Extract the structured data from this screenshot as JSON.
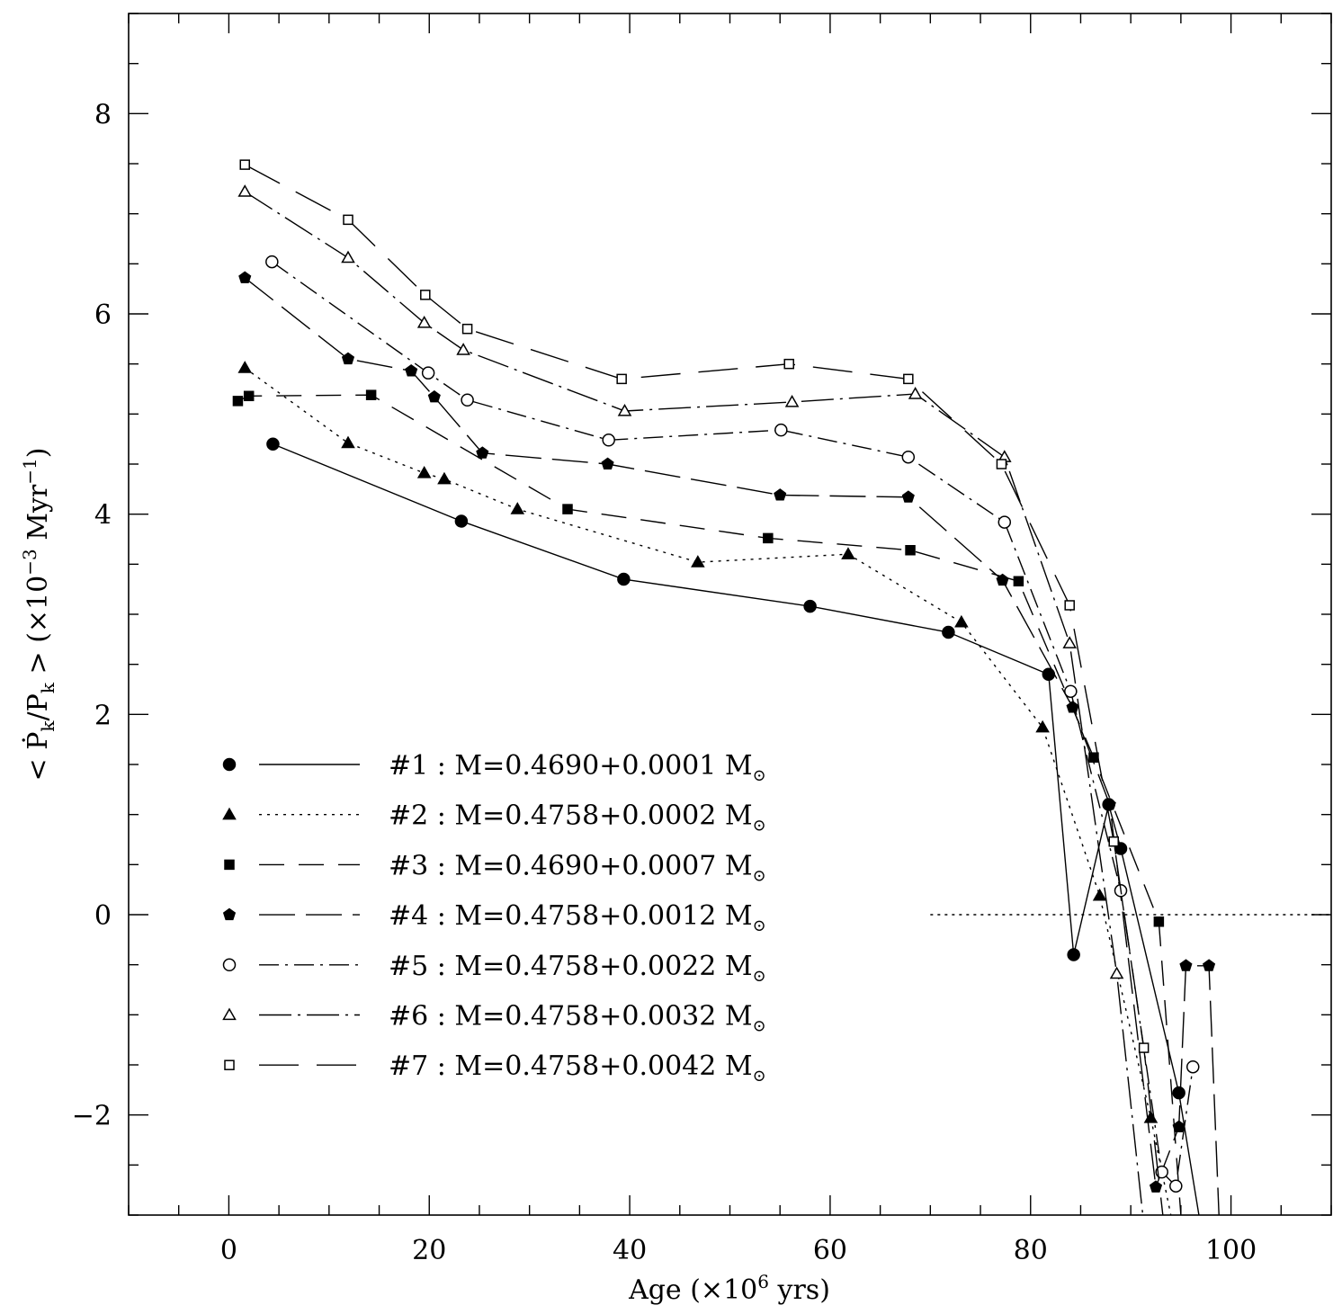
{
  "chart_data": {
    "type": "line",
    "xlabel": "Age (×10⁶ yrs)",
    "ylabel": "< Ṗk/Pk > (×10⁻³ Myr⁻¹)",
    "ylabel_parts": {
      "open": "<",
      "pdot": "Ṗ",
      "k1": "k",
      "slash": "/P",
      "k2": "k",
      "close": ">",
      "unit_open": "(×10",
      "exp": "−3",
      "unit_mid": " Myr",
      "unit_exp": "−1",
      "unit_close": ")"
    },
    "xlabel_parts": {
      "pre": "Age (×10",
      "exp": "6",
      "post": " yrs)"
    },
    "xlim": [
      -10,
      110
    ],
    "ylim": [
      -3,
      9
    ],
    "xticks": [
      0,
      20,
      40,
      60,
      80,
      100
    ],
    "xtick_labels": [
      "0",
      "20",
      "40",
      "60",
      "80",
      "100"
    ],
    "yticks": [
      -2,
      0,
      2,
      4,
      6,
      8
    ],
    "ytick_labels": [
      "−2",
      "0",
      "2",
      "4",
      "6",
      "8"
    ],
    "zero_line": {
      "y": 0,
      "x_start": 70,
      "x_end": 110
    },
    "series": [
      {
        "name": "#1 : M=0.4690+0.0001 M",
        "marker": "filled-circle",
        "dash": "",
        "x": [
          4.4,
          23.2,
          39.4,
          58.0,
          71.8,
          81.8,
          84.3,
          87.8,
          89.0,
          94.8,
          96.8
        ],
        "y": [
          4.7,
          3.93,
          3.35,
          3.08,
          2.82,
          2.4,
          -0.4,
          1.1,
          0.66,
          -1.78,
          -3.0
        ]
      },
      {
        "name": "#2 : M=0.4758+0.0002 M",
        "marker": "filled-triangle",
        "dash": "3,6",
        "x": [
          1.6,
          11.9,
          19.5,
          21.5,
          28.8,
          46.8,
          61.8,
          73.1,
          81.2,
          86.9,
          92.0,
          94.0
        ],
        "y": [
          5.46,
          4.71,
          4.41,
          4.35,
          4.05,
          3.52,
          3.6,
          2.92,
          1.87,
          0.19,
          -2.03,
          -3.0
        ]
      },
      {
        "name": "#3 : M=0.4690+0.0007 M",
        "marker": "filled-square",
        "dash": "28,16",
        "x": [
          0.9,
          2.0,
          14.2,
          33.8,
          53.8,
          68.0,
          78.8,
          86.3,
          92.8,
          95.0
        ],
        "y": [
          5.13,
          5.18,
          5.19,
          4.05,
          3.76,
          3.64,
          3.33,
          1.57,
          -0.07,
          -3.0
        ]
      },
      {
        "name": "#4 : M=0.4758+0.0012 M",
        "marker": "filled-pentagon",
        "dash": "40,12",
        "x": [
          1.6,
          11.9,
          18.2,
          20.5,
          25.3,
          37.8,
          55.0,
          67.8,
          77.2,
          84.2,
          87.9,
          92.5,
          94.8,
          95.5,
          97.8,
          98.8
        ],
        "y": [
          6.36,
          5.55,
          5.43,
          5.17,
          4.61,
          4.5,
          4.19,
          4.17,
          3.34,
          2.07,
          1.1,
          -2.72,
          -2.12,
          -0.51,
          -0.51,
          -3.0
        ]
      },
      {
        "name": "#5 : M=0.4758+0.0022 M",
        "marker": "open-circle",
        "dash": "22,7,3,7",
        "x": [
          4.3,
          19.9,
          23.8,
          37.9,
          55.1,
          67.8,
          77.4,
          84.0,
          89.0,
          93.1,
          94.5,
          96.2
        ],
        "y": [
          6.52,
          5.41,
          5.14,
          4.74,
          4.84,
          4.57,
          3.92,
          2.23,
          0.24,
          -2.57,
          -2.71,
          -1.52
        ]
      },
      {
        "name": "#6 : M=0.4758+0.0032 M",
        "marker": "open-triangle",
        "dash": "36,7,3,7",
        "x": [
          1.6,
          11.9,
          19.5,
          23.4,
          39.5,
          56.2,
          68.5,
          77.4,
          83.9,
          88.6,
          91.2
        ],
        "y": [
          7.22,
          6.56,
          5.91,
          5.64,
          5.03,
          5.12,
          5.2,
          4.57,
          2.71,
          -0.59,
          -3.0
        ]
      },
      {
        "name": "#7 : M=0.4758+0.0042 M",
        "marker": "open-square",
        "dash": "44,20",
        "x": [
          1.6,
          11.9,
          19.6,
          23.8,
          39.2,
          55.9,
          67.8,
          77.1,
          83.9,
          88.3,
          91.3,
          93.2
        ],
        "y": [
          7.49,
          6.94,
          6.19,
          5.85,
          5.35,
          5.5,
          5.35,
          4.5,
          3.09,
          0.73,
          -1.33,
          -3.0
        ]
      }
    ],
    "legend": {
      "position": "lower-left",
      "sun_symbol": "⊙",
      "entries": [
        {
          "label": "#1 : M=0.4690+0.0001 M"
        },
        {
          "label": "#2 : M=0.4758+0.0002 M"
        },
        {
          "label": "#3 : M=0.4690+0.0007 M"
        },
        {
          "label": "#4 : M=0.4758+0.0012 M"
        },
        {
          "label": "#5 : M=0.4758+0.0022 M"
        },
        {
          "label": "#6 : M=0.4758+0.0032 M"
        },
        {
          "label": "#7 : M=0.4758+0.0042 M"
        }
      ]
    }
  }
}
